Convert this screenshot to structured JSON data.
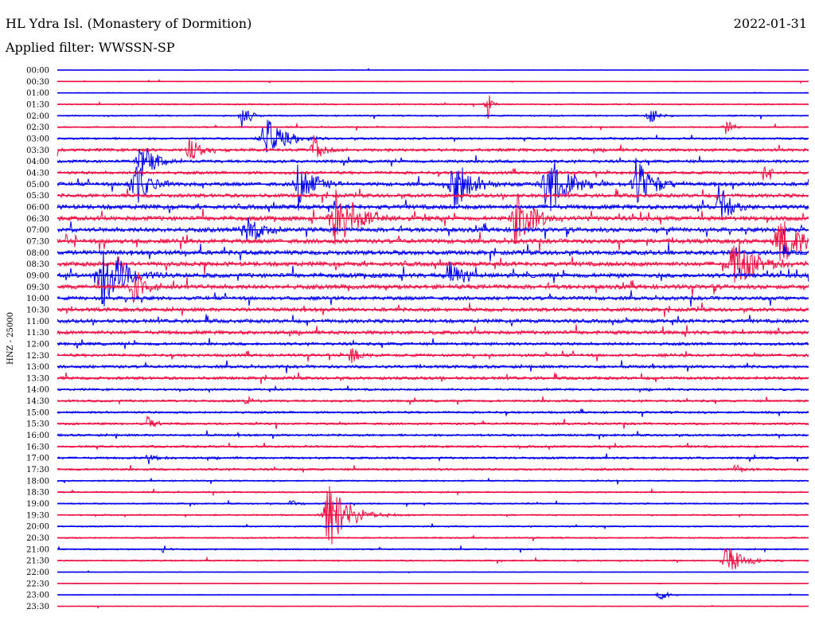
{
  "header": {
    "station": "HL Ydra Isl. (Monastery of Dormition)",
    "date": "2022-01-31",
    "filter": "Applied filter: WWSSN-SP"
  },
  "chart_data": {
    "type": "line",
    "ylabel": "HNZ - 25000",
    "colors": [
      "#0000ee",
      "#ee1144"
    ],
    "rows": [
      "00:00",
      "00:30",
      "01:00",
      "01:30",
      "02:00",
      "02:30",
      "03:00",
      "03:30",
      "04:00",
      "04:30",
      "05:00",
      "05:30",
      "06:00",
      "06:30",
      "07:00",
      "07:30",
      "08:00",
      "08:30",
      "09:00",
      "09:30",
      "10:00",
      "10:30",
      "11:00",
      "11:30",
      "12:00",
      "12:30",
      "13:00",
      "13:30",
      "14:00",
      "14:30",
      "15:00",
      "15:30",
      "16:00",
      "16:30",
      "17:00",
      "17:30",
      "18:00",
      "18:30",
      "19:00",
      "19:30",
      "20:00",
      "20:30",
      "21:00",
      "21:30",
      "22:00",
      "22:30",
      "23:00",
      "23:30"
    ],
    "noise_level": [
      1,
      1,
      1,
      2,
      2,
      2,
      3,
      4,
      4,
      4,
      5,
      5,
      6,
      6,
      6,
      6,
      6,
      6,
      6,
      6,
      5,
      5,
      5,
      5,
      4,
      4,
      4,
      4,
      3,
      3,
      3,
      3,
      3,
      3,
      3,
      3,
      2,
      2,
      2,
      2,
      2,
      2,
      2,
      2,
      1,
      1,
      1,
      1
    ],
    "events": [
      {
        "row": 3,
        "t": 0.57,
        "amp": 48,
        "dur": 0.004
      },
      {
        "row": 4,
        "t": 0.245,
        "amp": 20,
        "dur": 0.01
      },
      {
        "row": 4,
        "t": 0.785,
        "amp": 18,
        "dur": 0.01
      },
      {
        "row": 5,
        "t": 0.89,
        "amp": 10,
        "dur": 0.01
      },
      {
        "row": 7,
        "t": 0.175,
        "amp": 14,
        "dur": 0.02
      },
      {
        "row": 6,
        "t": 0.275,
        "amp": 34,
        "dur": 0.02
      },
      {
        "row": 7,
        "t": 0.34,
        "amp": 22,
        "dur": 0.012
      },
      {
        "row": 8,
        "t": 0.11,
        "amp": 26,
        "dur": 0.02
      },
      {
        "row": 9,
        "t": 0.94,
        "amp": 12,
        "dur": 0.01
      },
      {
        "row": 10,
        "t": 0.1,
        "amp": 40,
        "dur": 0.018
      },
      {
        "row": 10,
        "t": 0.32,
        "amp": 36,
        "dur": 0.02
      },
      {
        "row": 10,
        "t": 0.525,
        "amp": 42,
        "dur": 0.02
      },
      {
        "row": 10,
        "t": 0.65,
        "amp": 45,
        "dur": 0.025
      },
      {
        "row": 10,
        "t": 0.77,
        "amp": 40,
        "dur": 0.02
      },
      {
        "row": 12,
        "t": 0.88,
        "amp": 32,
        "dur": 0.015
      },
      {
        "row": 13,
        "t": 0.37,
        "amp": 40,
        "dur": 0.03
      },
      {
        "row": 13,
        "t": 0.61,
        "amp": 45,
        "dur": 0.02
      },
      {
        "row": 14,
        "t": 0.25,
        "amp": 22,
        "dur": 0.02
      },
      {
        "row": 15,
        "t": 0.96,
        "amp": 36,
        "dur": 0.03
      },
      {
        "row": 17,
        "t": 0.9,
        "amp": 36,
        "dur": 0.03
      },
      {
        "row": 18,
        "t": 0.06,
        "amp": 44,
        "dur": 0.03
      },
      {
        "row": 18,
        "t": 0.52,
        "amp": 22,
        "dur": 0.02
      },
      {
        "row": 19,
        "t": 0.1,
        "amp": 26,
        "dur": 0.02
      },
      {
        "row": 25,
        "t": 0.39,
        "amp": 14,
        "dur": 0.01
      },
      {
        "row": 29,
        "t": 0.25,
        "amp": 8,
        "dur": 0.01
      },
      {
        "row": 31,
        "t": 0.12,
        "amp": 10,
        "dur": 0.01
      },
      {
        "row": 34,
        "t": 0.12,
        "amp": 10,
        "dur": 0.01
      },
      {
        "row": 35,
        "t": 0.9,
        "amp": 8,
        "dur": 0.01
      },
      {
        "row": 38,
        "t": 0.31,
        "amp": 8,
        "dur": 0.008
      },
      {
        "row": 39,
        "t": 0.36,
        "amp": 48,
        "dur": 0.025
      },
      {
        "row": 42,
        "t": 0.14,
        "amp": 6,
        "dur": 0.008
      },
      {
        "row": 43,
        "t": 0.89,
        "amp": 22,
        "dur": 0.02
      },
      {
        "row": 46,
        "t": 0.8,
        "amp": 10,
        "dur": 0.01
      }
    ]
  }
}
